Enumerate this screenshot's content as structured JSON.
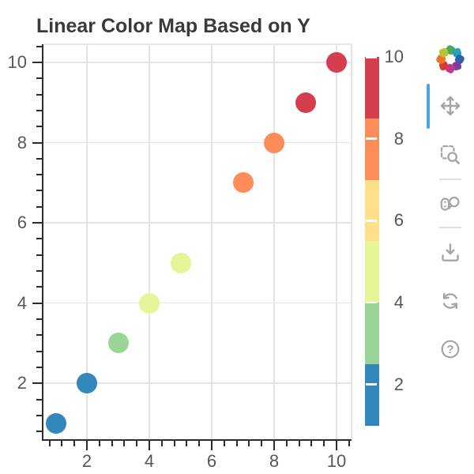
{
  "title": "Linear Color Map Based on Y",
  "chart_data": {
    "type": "scatter",
    "title": "Linear Color Map Based on Y",
    "x": [
      1,
      2,
      3,
      4,
      5,
      7,
      8,
      9,
      10
    ],
    "y": [
      1,
      2,
      3,
      4,
      5,
      7,
      8,
      9,
      10
    ],
    "marker": "circle",
    "marker_size_px": 26,
    "color_mapping": {
      "mode": "linear_cmap",
      "field": "y",
      "low": 1,
      "high": 10,
      "palette_name": "Spectral6",
      "palette": [
        "#3288bd",
        "#99d594",
        "#e6f598",
        "#fee08b",
        "#fc8d59",
        "#d53e4f"
      ]
    },
    "x_ticks": [
      2,
      4,
      6,
      8,
      10
    ],
    "y_ticks": [
      2,
      4,
      6,
      8,
      10
    ],
    "minor_tick_step": 0.4,
    "x_range": [
      0.55,
      10.45
    ],
    "y_range": [
      0.55,
      10.45
    ],
    "grid": true,
    "xlabel": "",
    "ylabel": "",
    "colorbar": {
      "position": "right",
      "low": 1,
      "high": 10,
      "ticks": [
        2,
        4,
        6,
        8,
        10
      ],
      "bands": [
        "#3288bd",
        "#99d594",
        "#e6f598",
        "#fee08b",
        "#fc8d59",
        "#d53e4f"
      ]
    }
  },
  "colors": {
    "background": "#ffffff",
    "title_text": "#3a3a3a",
    "tick_label": "#575757",
    "grid_line": "#e4e4e4",
    "axis_line": "#2d2d2d",
    "frame_outline": "#e5e5e5",
    "toolbar_icon": "#a5a5a5",
    "toolbar_divider": "#dfdfdf",
    "active_tool_indicator": "#4da6d9"
  },
  "toolbar": {
    "logo": "bokeh-logo",
    "logo_colors": [
      "#4aab52",
      "#29a2bc",
      "#2e62a9",
      "#7a3f9d",
      "#c2388e",
      "#d93a3f",
      "#ec7623",
      "#b9c337"
    ],
    "tools": [
      {
        "name": "pan",
        "icon": "move-icon",
        "active": true
      },
      {
        "name": "box-zoom",
        "icon": "box-zoom-icon",
        "active": false
      },
      {
        "name": "wheel-zoom",
        "icon": "wheel-zoom-icon",
        "active": false
      },
      {
        "name": "save",
        "icon": "download-icon",
        "active": false
      },
      {
        "name": "reset",
        "icon": "refresh-icon",
        "active": false
      },
      {
        "name": "help",
        "icon": "question-icon",
        "active": false
      }
    ]
  }
}
